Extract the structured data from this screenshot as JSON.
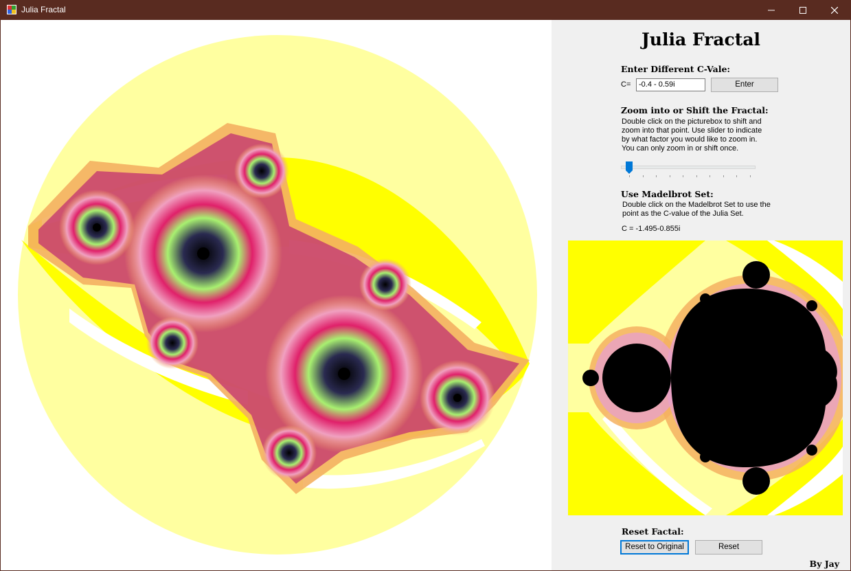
{
  "window": {
    "title": "Julia Fractal",
    "icon": "app-fractal-icon",
    "controls": [
      "minimize-icon",
      "maximize-icon",
      "close-icon"
    ]
  },
  "colors": {
    "titlebar": "#592b20",
    "panel": "#f0f0f0",
    "fractal_yellow": "#ffff00",
    "fractal_light_yellow": "#ffffa0",
    "fractal_pink": "#e0206a",
    "fractal_green": "#a8f070",
    "accent_blue": "#0078d7"
  },
  "panel": {
    "heading": "Julia Fractal",
    "cvalue": {
      "title": "Enter Different C-Vale:",
      "label": "C=",
      "value": "-0.4 - 0.59i",
      "button": "Enter"
    },
    "zoom": {
      "title": "Zoom into or Shift the Fractal:",
      "description_lines": [
        "Double click on the picturebox to shift and",
        "zoom into that point. Use slider to indicate",
        "by what factor you would like to zoom in.",
        "You can only zoom in or shift once."
      ],
      "slider_value": 0
    },
    "mandelbrot": {
      "title": "Use Madelbrot Set:",
      "description_lines": [
        "Double click on the Madelbrot Set to use the",
        "point as the C-value of the Julia Set."
      ],
      "current_c": "C = -1.495-0.855i"
    },
    "reset": {
      "title": "Reset Factal:",
      "reset_original_button": "Reset to Original",
      "reset_button": "Reset"
    },
    "byline": "By Jay"
  }
}
